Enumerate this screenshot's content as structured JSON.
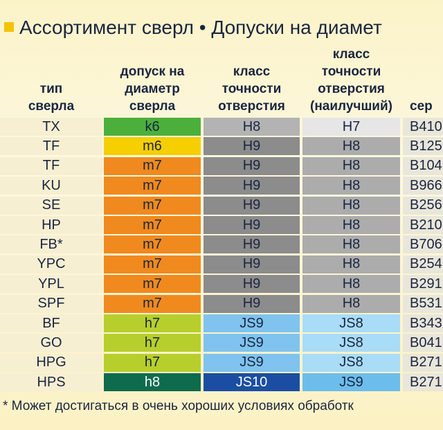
{
  "title": "Ассортимент сверл • Допуски на диамет",
  "table": {
    "header": [
      [
        "тип",
        "сверла"
      ],
      [
        "допуск на",
        "диаметр",
        "сверла"
      ],
      [
        "класс",
        "точности",
        "отверстия"
      ],
      [
        "класс",
        "точности",
        "отверстия",
        "(наилучший)"
      ],
      [
        "сер"
      ]
    ],
    "rows": [
      [
        "TX",
        "k6",
        "H8",
        "H7",
        "B410"
      ],
      [
        "TF",
        "m6",
        "H9",
        "H8",
        "B125"
      ],
      [
        "TF",
        "m7",
        "H9",
        "H8",
        "B104"
      ],
      [
        "KU",
        "m7",
        "H9",
        "H8",
        "B966"
      ],
      [
        "SE",
        "m7",
        "H9",
        "H8",
        "B256"
      ],
      [
        "HP",
        "m7",
        "H9",
        "H8",
        "B210"
      ],
      [
        "FB*",
        "m7",
        "H9",
        "H8",
        "B706"
      ],
      [
        "YPC",
        "m7",
        "H9",
        "H8",
        "B254"
      ],
      [
        "YPL",
        "m7",
        "H9",
        "H8",
        "B291"
      ],
      [
        "SPF",
        "m7",
        "H9",
        "H8",
        "B531"
      ],
      [
        "BF",
        "h7",
        "JS9",
        "JS8",
        "B343"
      ],
      [
        "GO",
        "h7",
        "JS9",
        "JS8",
        "B041"
      ],
      [
        "HPG",
        "h7",
        "JS9",
        "JS8",
        "B271"
      ],
      [
        "HPS",
        "h8",
        "JS10",
        "JS9",
        "B271"
      ]
    ]
  },
  "footnote": "* Может достигаться в очень хороших условиях обработк"
}
